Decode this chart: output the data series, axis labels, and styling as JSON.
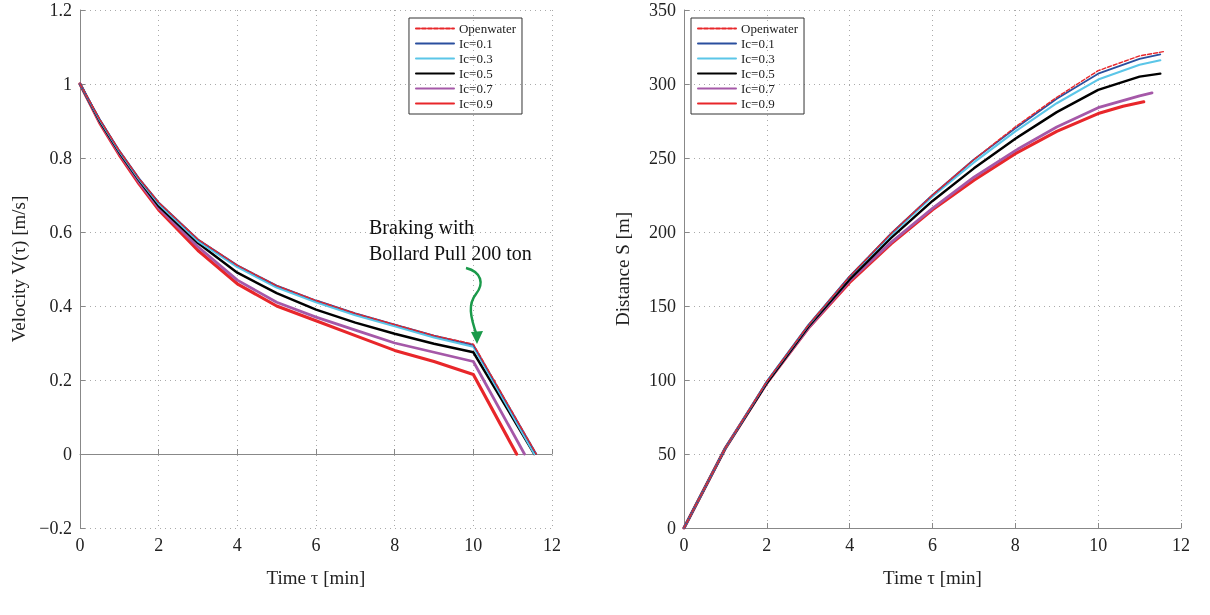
{
  "chart_data": [
    {
      "type": "line",
      "xlabel": "Time τ [min]",
      "ylabel": "Velocity V(τ) [m/s]",
      "xlim": [
        0,
        12
      ],
      "ylim": [
        -0.2,
        1.2
      ],
      "xticks": [
        0,
        2,
        4,
        6,
        8,
        10,
        12
      ],
      "yticks": [
        {
          "value": -0.2,
          "label": "−0.2"
        },
        0,
        0.2,
        0.4,
        0.6,
        0.8,
        1,
        1.2
      ],
      "grid": true,
      "legend": "top right",
      "annotations": [
        "Braking with\nBollard Pull 200 ton"
      ],
      "series": [
        {
          "name": "Openwater",
          "color": "#e8262a",
          "line_style": "dashed",
          "x": [
            0,
            0.5,
            1,
            1.5,
            2,
            3,
            4,
            5,
            6,
            7,
            8,
            9,
            10,
            11.6
          ],
          "values": [
            1,
            0.905,
            0.82,
            0.745,
            0.68,
            0.58,
            0.51,
            0.455,
            0.415,
            0.38,
            0.35,
            0.32,
            0.297,
            0
          ]
        },
        {
          "name": "Ic=0.1",
          "color": "#2a4f9e",
          "x": [
            0,
            0.5,
            1,
            1.5,
            2,
            3,
            4,
            5,
            6,
            7,
            8,
            9,
            10,
            11.6
          ],
          "values": [
            1,
            0.905,
            0.82,
            0.745,
            0.68,
            0.58,
            0.51,
            0.455,
            0.415,
            0.38,
            0.35,
            0.32,
            0.295,
            0
          ]
        },
        {
          "name": "Ic=0.3",
          "color": "#5bc6e8",
          "x": [
            0,
            0.5,
            1,
            1.5,
            2,
            3,
            4,
            5,
            6,
            7,
            8,
            9,
            10,
            11.55
          ],
          "values": [
            1,
            0.903,
            0.818,
            0.742,
            0.676,
            0.575,
            0.505,
            0.45,
            0.41,
            0.375,
            0.345,
            0.315,
            0.29,
            0
          ]
        },
        {
          "name": "Ic=0.5",
          "color": "#000000",
          "x": [
            0,
            0.5,
            1,
            1.5,
            2,
            3,
            4,
            5,
            6,
            7,
            8,
            9,
            10,
            11.55
          ],
          "values": [
            1,
            0.9,
            0.815,
            0.74,
            0.67,
            0.57,
            0.49,
            0.435,
            0.39,
            0.355,
            0.325,
            0.298,
            0.275,
            0
          ]
        },
        {
          "name": "Ic=0.7",
          "color": "#a558a8",
          "x": [
            0,
            0.5,
            1,
            1.5,
            2,
            3,
            4,
            5,
            6,
            7,
            8,
            9,
            10,
            11.3
          ],
          "values": [
            1,
            0.898,
            0.812,
            0.735,
            0.665,
            0.56,
            0.47,
            0.41,
            0.37,
            0.335,
            0.3,
            0.275,
            0.25,
            0
          ]
        },
        {
          "name": "Ic=0.9",
          "color": "#e8262a",
          "x": [
            0,
            0.5,
            1,
            1.5,
            2,
            3,
            4,
            5,
            6,
            7,
            8,
            9,
            10,
            11.1
          ],
          "values": [
            1,
            0.895,
            0.808,
            0.73,
            0.66,
            0.55,
            0.46,
            0.4,
            0.36,
            0.32,
            0.28,
            0.25,
            0.215,
            0
          ]
        }
      ]
    },
    {
      "type": "line",
      "xlabel": "Time τ [min]",
      "ylabel": "Distance S [m]",
      "xlim": [
        0,
        12
      ],
      "ylim": [
        0,
        350
      ],
      "xticks": [
        0,
        2,
        4,
        6,
        8,
        10,
        12
      ],
      "yticks": [
        0,
        50,
        100,
        150,
        200,
        250,
        300,
        350
      ],
      "grid": true,
      "legend": "top left",
      "series": [
        {
          "name": "Openwater",
          "color": "#e8262a",
          "line_style": "dashed",
          "x": [
            0,
            1,
            2,
            3,
            4,
            5,
            6,
            7,
            8,
            9,
            10,
            11,
            11.6
          ],
          "values": [
            0,
            54,
            99,
            137,
            170,
            199,
            225,
            249,
            271,
            291,
            309,
            319,
            322
          ]
        },
        {
          "name": "Ic=0.1",
          "color": "#2a4f9e",
          "x": [
            0,
            1,
            2,
            3,
            4,
            5,
            6,
            7,
            8,
            9,
            10,
            11,
            11.5
          ],
          "values": [
            0,
            54,
            99,
            137,
            170,
            199,
            225,
            249,
            270,
            290,
            307,
            317,
            320
          ]
        },
        {
          "name": "Ic=0.3",
          "color": "#5bc6e8",
          "x": [
            0,
            1,
            2,
            3,
            4,
            5,
            6,
            7,
            8,
            9,
            10,
            11,
            11.5
          ],
          "values": [
            0,
            54,
            99,
            137,
            170,
            198,
            224,
            247,
            268,
            287,
            303,
            313,
            316
          ]
        },
        {
          "name": "Ic=0.5",
          "color": "#000000",
          "x": [
            0,
            1,
            2,
            3,
            4,
            5,
            6,
            7,
            8,
            9,
            10,
            11,
            11.5
          ],
          "values": [
            0,
            54,
            98,
            136,
            168,
            196,
            221,
            243,
            263,
            281,
            296,
            305,
            307
          ]
        },
        {
          "name": "Ic=0.7",
          "color": "#a558a8",
          "x": [
            0,
            1,
            2,
            3,
            4,
            5,
            6,
            7,
            8,
            9,
            10,
            11,
            11.3
          ],
          "values": [
            0,
            54,
            98,
            135,
            167,
            193,
            216,
            237,
            255,
            271,
            284,
            292,
            294
          ]
        },
        {
          "name": "Ic=0.9",
          "color": "#e8262a",
          "x": [
            0,
            1,
            2,
            3,
            4,
            5,
            6,
            7,
            8,
            9,
            10,
            10.6,
            11.1
          ],
          "values": [
            0,
            54,
            98,
            135,
            166,
            192,
            215,
            235,
            253,
            268,
            280,
            285,
            288
          ]
        }
      ]
    }
  ]
}
